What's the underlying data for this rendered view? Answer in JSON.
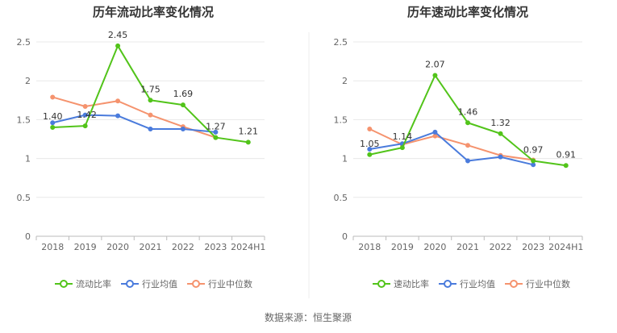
{
  "source_label": "数据来源：恒生聚源",
  "colors": {
    "primary": "#52c41a",
    "industry_avg": "#4a7bdc",
    "industry_median": "#f5936e",
    "grid": "#e8e8e8",
    "axis": "#bbbbbb",
    "text": "#666666",
    "title": "#333333"
  },
  "chart_data": [
    {
      "type": "line",
      "title": "历年流动比率变化情况",
      "categories": [
        "2018",
        "2019",
        "2020",
        "2021",
        "2022",
        "2023",
        "2024H1"
      ],
      "yticks": [
        "0",
        "0.5",
        "1",
        "1.5",
        "2",
        "2.5"
      ],
      "ylim": [
        0,
        2.5
      ],
      "series": [
        {
          "name": "流动比率",
          "key": "primary",
          "values": [
            1.4,
            1.42,
            2.45,
            1.75,
            1.69,
            1.27,
            1.21
          ],
          "labels": [
            "1.40",
            "1.42",
            "2.45",
            "1.75",
            "1.69",
            "1.27",
            "1.21"
          ]
        },
        {
          "name": "行业均值",
          "key": "industry_avg",
          "values": [
            1.46,
            1.56,
            1.55,
            1.38,
            1.38,
            1.34,
            null
          ]
        },
        {
          "name": "行业中位数",
          "key": "industry_median",
          "values": [
            1.79,
            1.67,
            1.74,
            1.56,
            1.41,
            1.27,
            null
          ]
        }
      ]
    },
    {
      "type": "line",
      "title": "历年速动比率变化情况",
      "categories": [
        "2018",
        "2019",
        "2020",
        "2021",
        "2022",
        "2023",
        "2024H1"
      ],
      "yticks": [
        "0",
        "0.5",
        "1",
        "1.5",
        "2",
        "2.5"
      ],
      "ylim": [
        0,
        2.5
      ],
      "series": [
        {
          "name": "速动比率",
          "key": "primary",
          "values": [
            1.05,
            1.14,
            2.07,
            1.46,
            1.32,
            0.97,
            0.91
          ],
          "labels": [
            "1.05",
            "1.14",
            "2.07",
            "1.46",
            "1.32",
            "0.97",
            "0.91"
          ]
        },
        {
          "name": "行业均值",
          "key": "industry_avg",
          "values": [
            1.12,
            1.19,
            1.34,
            0.97,
            1.02,
            0.92,
            null
          ]
        },
        {
          "name": "行业中位数",
          "key": "industry_median",
          "values": [
            1.38,
            1.18,
            1.29,
            1.17,
            1.04,
            0.98,
            null
          ]
        }
      ]
    }
  ]
}
